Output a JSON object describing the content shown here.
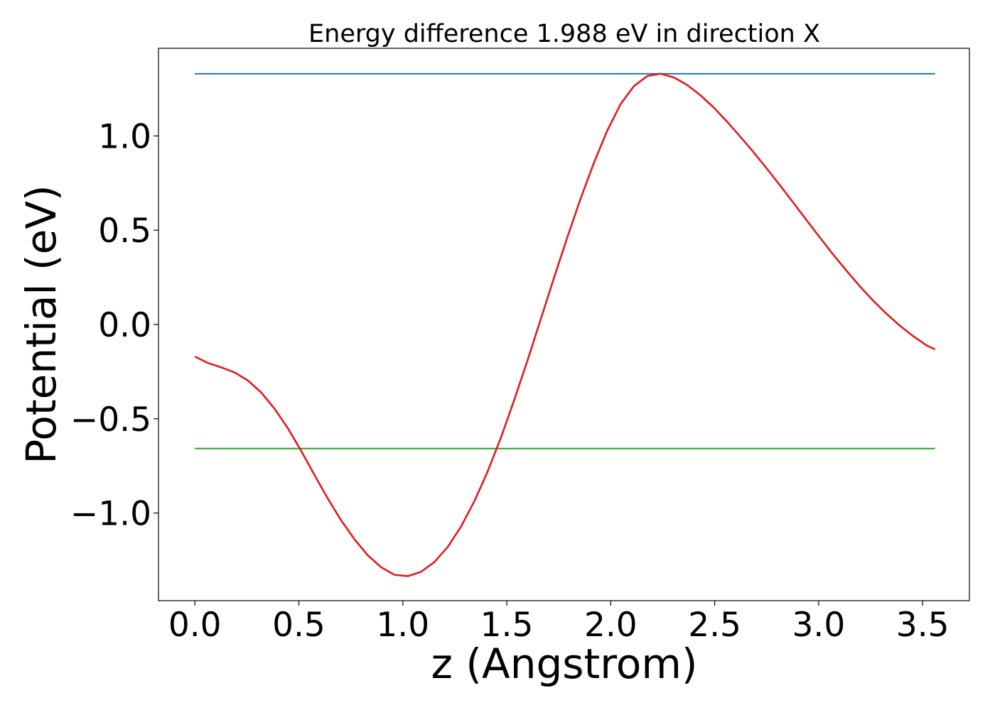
{
  "chart_data": {
    "type": "line",
    "title": "Energy difference 1.988 eV in direction X",
    "xlabel": "z (Angstrom)",
    "ylabel": "Potential (eV)",
    "xlim": [
      -0.175,
      3.725
    ],
    "ylim": [
      -1.465,
      1.465
    ],
    "xticks": [
      0.0,
      0.5,
      1.0,
      1.5,
      2.0,
      2.5,
      3.0,
      3.5
    ],
    "xtick_labels": [
      "0.0",
      "0.5",
      "1.0",
      "1.5",
      "2.0",
      "2.5",
      "3.0",
      "3.5"
    ],
    "yticks": [
      1.0,
      0.5,
      0.0,
      -0.5,
      -1.0
    ],
    "ytick_labels": [
      "1.0",
      "0.5",
      "0.0",
      "−0.5",
      "−1.0"
    ],
    "grid": false,
    "series": [
      {
        "color": "#e41a1c",
        "x": [
          0.0,
          0.064,
          0.128,
          0.192,
          0.256,
          0.32,
          0.384,
          0.448,
          0.512,
          0.576,
          0.64,
          0.704,
          0.768,
          0.832,
          0.896,
          0.96,
          1.024,
          1.088,
          1.152,
          1.216,
          1.28,
          1.344,
          1.408,
          1.472,
          1.536,
          1.6,
          1.664,
          1.728,
          1.792,
          1.856,
          1.92,
          1.984,
          2.048,
          2.112,
          2.176,
          2.24,
          2.304,
          2.368,
          2.432,
          2.496,
          2.56,
          2.624,
          2.688,
          2.752,
          2.816,
          2.88,
          2.944,
          3.008,
          3.072,
          3.136,
          3.2,
          3.264,
          3.328,
          3.392,
          3.456,
          3.52,
          3.56
        ],
        "y": [
          -0.17,
          -0.205,
          -0.228,
          -0.255,
          -0.298,
          -0.362,
          -0.448,
          -0.552,
          -0.672,
          -0.8,
          -0.925,
          -1.04,
          -1.14,
          -1.225,
          -1.288,
          -1.328,
          -1.335,
          -1.312,
          -1.26,
          -1.18,
          -1.072,
          -0.938,
          -0.78,
          -0.6,
          -0.4,
          -0.19,
          0.03,
          0.25,
          0.465,
          0.67,
          0.86,
          1.03,
          1.17,
          1.265,
          1.318,
          1.33,
          1.31,
          1.27,
          1.215,
          1.15,
          1.075,
          0.995,
          0.912,
          0.825,
          0.735,
          0.643,
          0.55,
          0.458,
          0.368,
          0.282,
          0.2,
          0.124,
          0.055,
          -0.008,
          -0.063,
          -0.112,
          -0.132
        ]
      },
      {
        "color": "#1f77b4",
        "x": [
          0.0,
          3.56
        ],
        "y": [
          1.33,
          1.33
        ]
      },
      {
        "color": "#2ca02c",
        "x": [
          0.0,
          3.56
        ],
        "y": [
          -0.658,
          -0.658
        ]
      }
    ]
  }
}
